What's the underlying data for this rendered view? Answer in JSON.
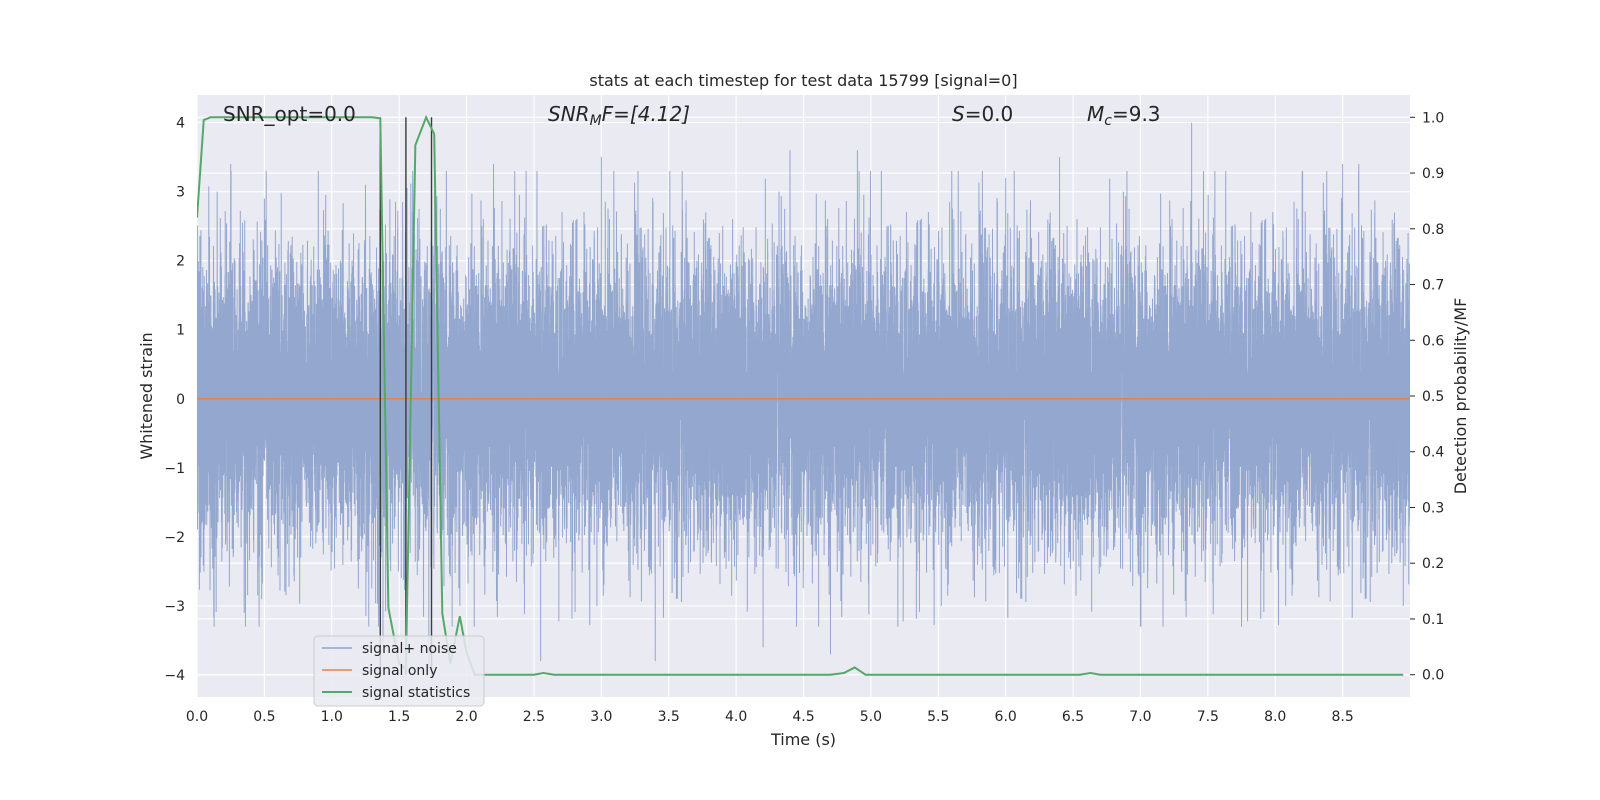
{
  "chart_data": {
    "type": "line",
    "title": "stats at each timestep for test data 15799 [signal=0]",
    "xlabel": "Time (s)",
    "ylabel": "Whitened strain",
    "y2label": "Detection probability/MF",
    "xlim": [
      0.0,
      9.0
    ],
    "ylim": [
      -4.32,
      4.4
    ],
    "y2lim": [
      -0.04,
      1.04
    ],
    "xticks": [
      "0.0",
      "0.5",
      "1.0",
      "1.5",
      "2.0",
      "2.5",
      "3.0",
      "3.5",
      "4.0",
      "4.5",
      "5.0",
      "5.5",
      "6.0",
      "6.5",
      "7.0",
      "7.5",
      "8.0",
      "8.5"
    ],
    "yticks": [
      "4",
      "3",
      "2",
      "1",
      "0",
      "−1",
      "−2",
      "−3",
      "−4"
    ],
    "y2ticks": [
      "1.0",
      "0.9",
      "0.8",
      "0.7",
      "0.6",
      "0.5",
      "0.4",
      "0.3",
      "0.2",
      "0.1",
      "0.0"
    ],
    "grid": true,
    "legend_position": "lower-left",
    "colors": {
      "noise": "#8fa3cc",
      "signal": "#dd8452",
      "stats": "#55a868",
      "vlines": "#3b3b3b",
      "axes_bg": "#eaeaf2",
      "grid": "#ffffff"
    },
    "annotations": {
      "snr_opt": "SNR_opt=0.0",
      "snr_mf_main": "SNR",
      "snr_mf_sub": "M",
      "snr_mf_rest": "F=[4.12]",
      "s_main": "S",
      "s_rest": "=0.0",
      "mc_main": "M",
      "mc_sub": "c",
      "mc_rest": "=9.3"
    },
    "vertical_lines_x": [
      1.36,
      1.55,
      1.74
    ],
    "series": [
      {
        "name": "signal+ noise",
        "axis": "left",
        "sample_rate_hz": 2048,
        "extreme_peaks": [
          {
            "t": 0.15,
            "v": 3.0
          },
          {
            "t": 0.25,
            "v": 3.4
          },
          {
            "t": 0.35,
            "v": -3.1
          },
          {
            "t": 0.5,
            "v": 2.9
          },
          {
            "t": 0.9,
            "v": 3.3
          },
          {
            "t": 1.25,
            "v": 3.1
          },
          {
            "t": 1.38,
            "v": -3.6
          },
          {
            "t": 1.6,
            "v": 3.3
          },
          {
            "t": 1.72,
            "v": -3.9
          },
          {
            "t": 1.85,
            "v": 3.3
          },
          {
            "t": 1.95,
            "v": -3.0
          },
          {
            "t": 2.2,
            "v": 3.4
          },
          {
            "t": 2.55,
            "v": -3.8
          },
          {
            "t": 3.0,
            "v": 3.5
          },
          {
            "t": 3.4,
            "v": -3.8
          },
          {
            "t": 3.6,
            "v": 3.3
          },
          {
            "t": 4.2,
            "v": -3.6
          },
          {
            "t": 4.4,
            "v": 3.6
          },
          {
            "t": 4.7,
            "v": -3.7
          },
          {
            "t": 4.9,
            "v": 3.6
          },
          {
            "t": 5.2,
            "v": -3.3
          },
          {
            "t": 5.6,
            "v": 3.3
          },
          {
            "t": 6.0,
            "v": 3.2
          },
          {
            "t": 6.4,
            "v": 3.5
          },
          {
            "t": 6.9,
            "v": 3.3
          },
          {
            "t": 7.0,
            "v": -3.3
          },
          {
            "t": 7.38,
            "v": 4.0
          },
          {
            "t": 7.75,
            "v": -3.3
          },
          {
            "t": 8.2,
            "v": 3.3
          },
          {
            "t": 8.5,
            "v": 3.4
          },
          {
            "t": 8.62,
            "v": 3.4
          },
          {
            "t": 8.95,
            "v": -3.0
          }
        ]
      },
      {
        "name": "signal only",
        "axis": "left",
        "x": [
          0.0,
          9.0
        ],
        "values": [
          0.0,
          0.0
        ]
      },
      {
        "name": "signal statistics",
        "axis": "right",
        "x": [
          0.0,
          0.05,
          0.1,
          0.2,
          0.5,
          1.0,
          1.3,
          1.36,
          1.42,
          1.5,
          1.55,
          1.62,
          1.7,
          1.76,
          1.82,
          1.88,
          1.95,
          2.0,
          2.06,
          2.1,
          2.5,
          2.57,
          2.65,
          3.0,
          4.0,
          4.7,
          4.8,
          4.88,
          4.96,
          5.0,
          6.0,
          6.55,
          6.63,
          6.7,
          7.0,
          8.0,
          8.95
        ],
        "values": [
          0.82,
          0.995,
          1.0,
          1.0,
          1.0,
          1.0,
          1.0,
          0.998,
          0.12,
          0.02,
          0.01,
          0.95,
          1.0,
          0.97,
          0.11,
          0.02,
          0.105,
          0.04,
          0.0,
          0.0,
          0.0,
          0.003,
          0.0,
          0.0,
          0.0,
          0.0,
          0.003,
          0.013,
          0.0,
          0.0,
          0.0,
          0.0,
          0.003,
          0.0,
          0.0,
          0.0,
          0.0
        ]
      }
    ]
  }
}
